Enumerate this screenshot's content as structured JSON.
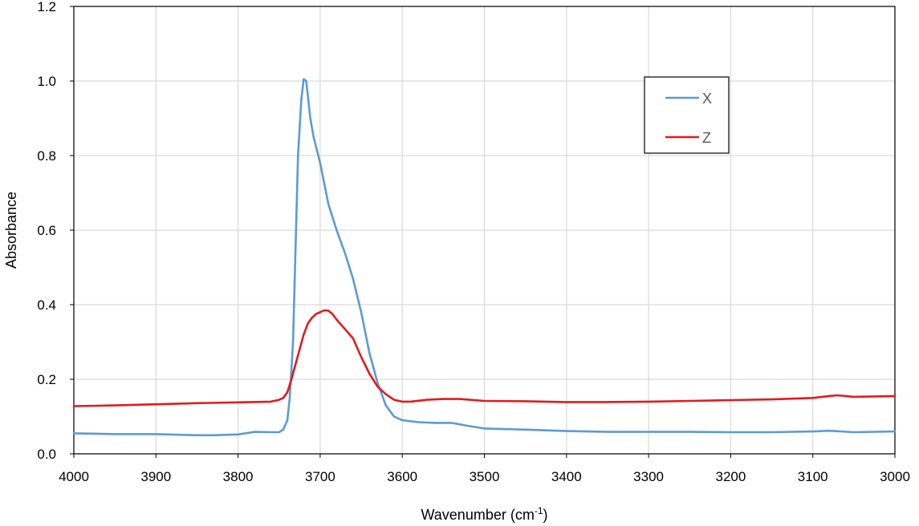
{
  "chart_data": {
    "type": "line",
    "title": "",
    "xlabel": "Wavenumber (cm",
    "xlabel_sup": "-1",
    "xlabel_suffix": ")",
    "ylabel": "Absorbance",
    "xlim": [
      4000,
      3000
    ],
    "ylim": [
      0,
      1.2
    ],
    "x_reversed": true,
    "x_ticks": [
      4000,
      3900,
      3800,
      3700,
      3600,
      3500,
      3400,
      3300,
      3200,
      3100,
      3000
    ],
    "x_tick_labels": [
      "4000",
      "3900",
      "3800",
      "3700",
      "3600",
      "3500",
      "3400",
      "3300",
      "3200",
      "3100",
      "3000"
    ],
    "y_ticks": [
      0.0,
      0.2,
      0.4,
      0.6,
      0.8,
      1.0,
      1.2
    ],
    "y_tick_labels": [
      "0.0",
      "0.2",
      "0.4",
      "0.6",
      "0.8",
      "1.0",
      "1.2"
    ],
    "grid": true,
    "legend_position": "top-right",
    "series": [
      {
        "name": "X",
        "color": "#5b9bd5",
        "x": [
          4000,
          3950,
          3900,
          3850,
          3830,
          3800,
          3780,
          3760,
          3750,
          3745,
          3740,
          3737,
          3733,
          3730,
          3727,
          3723,
          3720,
          3717,
          3715,
          3712,
          3708,
          3700,
          3690,
          3680,
          3670,
          3660,
          3650,
          3640,
          3630,
          3620,
          3610,
          3600,
          3580,
          3560,
          3540,
          3520,
          3500,
          3450,
          3400,
          3350,
          3300,
          3250,
          3200,
          3150,
          3100,
          3080,
          3050,
          3000
        ],
        "y": [
          0.055,
          0.053,
          0.053,
          0.05,
          0.05,
          0.052,
          0.059,
          0.058,
          0.058,
          0.065,
          0.09,
          0.15,
          0.3,
          0.55,
          0.8,
          0.95,
          1.005,
          1.0,
          0.96,
          0.9,
          0.85,
          0.78,
          0.67,
          0.6,
          0.54,
          0.47,
          0.38,
          0.27,
          0.19,
          0.13,
          0.1,
          0.09,
          0.085,
          0.083,
          0.083,
          0.075,
          0.068,
          0.065,
          0.061,
          0.059,
          0.059,
          0.059,
          0.058,
          0.058,
          0.06,
          0.062,
          0.058,
          0.06
        ]
      },
      {
        "name": "Z",
        "color": "#e31a1c",
        "x": [
          4000,
          3950,
          3900,
          3850,
          3800,
          3760,
          3750,
          3745,
          3740,
          3735,
          3730,
          3725,
          3720,
          3715,
          3710,
          3705,
          3700,
          3695,
          3690,
          3685,
          3680,
          3670,
          3660,
          3650,
          3640,
          3630,
          3620,
          3610,
          3600,
          3590,
          3570,
          3550,
          3530,
          3500,
          3450,
          3400,
          3350,
          3300,
          3250,
          3200,
          3150,
          3100,
          3080,
          3070,
          3050,
          3000
        ],
        "y": [
          0.128,
          0.13,
          0.133,
          0.136,
          0.138,
          0.14,
          0.145,
          0.15,
          0.165,
          0.2,
          0.24,
          0.28,
          0.32,
          0.35,
          0.365,
          0.375,
          0.38,
          0.385,
          0.384,
          0.375,
          0.36,
          0.335,
          0.31,
          0.26,
          0.215,
          0.18,
          0.16,
          0.145,
          0.14,
          0.14,
          0.145,
          0.147,
          0.147,
          0.142,
          0.141,
          0.139,
          0.139,
          0.14,
          0.142,
          0.144,
          0.146,
          0.15,
          0.155,
          0.157,
          0.153,
          0.155
        ]
      }
    ]
  }
}
